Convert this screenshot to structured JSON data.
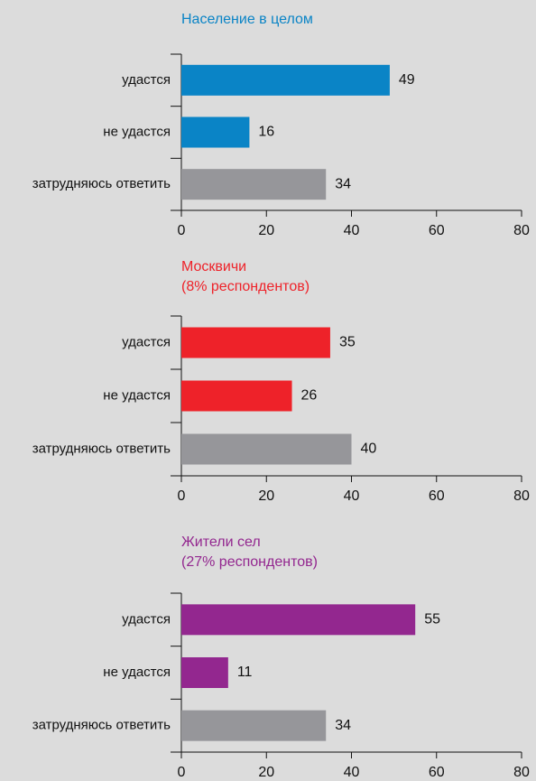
{
  "chart_data": [
    {
      "type": "bar",
      "title": "Население в целом",
      "title_color": "#0a84c6",
      "categories": [
        "удастся",
        "не удастся",
        "затрудняюсь ответить"
      ],
      "values": [
        49,
        16,
        34
      ],
      "colors": [
        "#0a84c6",
        "#0a84c6",
        "#96969a"
      ],
      "xlim": [
        0,
        80
      ],
      "xticks": [
        0,
        20,
        40,
        60,
        80
      ]
    },
    {
      "type": "bar",
      "title": "Москвичи",
      "subtitle": "(8% респондентов)",
      "title_color": "#ee2229",
      "categories": [
        "удастся",
        "не удастся",
        "затрудняюсь ответить"
      ],
      "values": [
        35,
        26,
        40
      ],
      "colors": [
        "#ee2229",
        "#ee2229",
        "#96969a"
      ],
      "xlim": [
        0,
        80
      ],
      "xticks": [
        0,
        20,
        40,
        60,
        80
      ]
    },
    {
      "type": "bar",
      "title": "Жители сел",
      "subtitle": "(27% респондентов)",
      "title_color": "#93278f",
      "categories": [
        "удастся",
        "не удастся",
        "затрудняюсь ответить"
      ],
      "values": [
        55,
        11,
        34
      ],
      "colors": [
        "#93278f",
        "#93278f",
        "#96969a"
      ],
      "xlim": [
        0,
        80
      ],
      "xticks": [
        0,
        20,
        40,
        60,
        80
      ]
    }
  ]
}
